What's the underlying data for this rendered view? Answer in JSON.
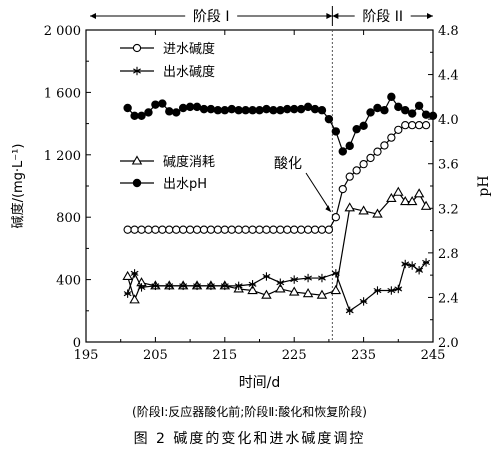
{
  "figure": {
    "note": "(阶段Ⅰ:反应器酸化前;阶段Ⅱ:酸化和恢复阶段)",
    "caption": "图 2   碱度的变化和进水碱度调控"
  },
  "chart_data": {
    "type": "line",
    "xlabel": "时间/d",
    "ylabel_left": "碱度/(mg·L⁻¹)",
    "ylabel_right": "pH",
    "xlim": [
      195,
      245
    ],
    "ylim_left": [
      0,
      2000
    ],
    "ylim_right": [
      2.0,
      4.8
    ],
    "xticks": [
      195,
      205,
      215,
      225,
      235,
      245
    ],
    "yticks_left": [
      0,
      400,
      800,
      1200,
      1600,
      2000
    ],
    "yticks_left_labels": [
      "0",
      "400",
      "800",
      "1 200",
      "1 600",
      "2 000"
    ],
    "yticks_right": [
      2.0,
      2.4,
      2.8,
      3.2,
      3.6,
      4.0,
      4.4,
      4.8
    ],
    "yticks_right_labels": [
      "2.0",
      "2.4",
      "2.8",
      "3.2",
      "3.6",
      "4.0",
      "4.4",
      "4.8"
    ],
    "stages": [
      {
        "label": "阶段 I",
        "start": 195,
        "end": 230.5
      },
      {
        "label": "阶段 II",
        "start": 230.5,
        "end": 245
      }
    ],
    "annotation": {
      "text": "酸化",
      "x": 230.5,
      "y": 800
    },
    "grid": false,
    "legend_placement": "top-left and middle-left",
    "series": [
      {
        "name": "进水碱度",
        "marker": "open-circle",
        "axis": "left",
        "x": [
          201,
          202,
          203,
          204,
          205,
          206,
          207,
          208,
          209,
          210,
          211,
          212,
          213,
          214,
          215,
          216,
          217,
          218,
          219,
          220,
          221,
          222,
          223,
          224,
          225,
          226,
          227,
          228,
          229,
          230,
          231,
          232,
          233,
          234,
          235,
          236,
          237,
          238,
          239,
          240,
          241,
          242,
          243,
          244
        ],
        "values": [
          720,
          720,
          720,
          720,
          720,
          720,
          720,
          720,
          720,
          720,
          720,
          720,
          720,
          720,
          720,
          720,
          720,
          720,
          720,
          720,
          720,
          720,
          720,
          720,
          720,
          720,
          720,
          720,
          720,
          720,
          800,
          980,
          1060,
          1100,
          1140,
          1180,
          1220,
          1260,
          1310,
          1360,
          1390,
          1390,
          1390,
          1390
        ]
      },
      {
        "name": "出水碱度",
        "marker": "asterisk",
        "axis": "left",
        "x": [
          201,
          202,
          203,
          205,
          207,
          209,
          211,
          213,
          215,
          217,
          219,
          221,
          223,
          225,
          227,
          229,
          231,
          233,
          235,
          237,
          239,
          240,
          241,
          242,
          243,
          244
        ],
        "values": [
          310,
          440,
          350,
          360,
          360,
          360,
          360,
          360,
          360,
          360,
          370,
          420,
          380,
          400,
          410,
          410,
          440,
          200,
          260,
          330,
          330,
          340,
          500,
          490,
          460,
          510
        ]
      },
      {
        "name": "碱度消耗",
        "marker": "open-triangle",
        "axis": "left",
        "x": [
          201,
          202,
          203,
          205,
          207,
          209,
          211,
          213,
          215,
          217,
          219,
          221,
          223,
          225,
          227,
          229,
          231,
          233,
          235,
          237,
          239,
          240,
          241,
          242,
          243,
          244
        ],
        "values": [
          420,
          270,
          380,
          360,
          360,
          360,
          360,
          360,
          360,
          340,
          330,
          300,
          340,
          320,
          310,
          300,
          330,
          860,
          840,
          820,
          920,
          960,
          900,
          900,
          950,
          870
        ]
      },
      {
        "name": "出水pH",
        "marker": "filled-circle",
        "axis": "right",
        "x": [
          201,
          202,
          203,
          204,
          205,
          206,
          207,
          208,
          209,
          210,
          211,
          212,
          213,
          214,
          215,
          216,
          217,
          218,
          219,
          220,
          221,
          222,
          223,
          224,
          225,
          226,
          227,
          228,
          229,
          230,
          231,
          232,
          233,
          234,
          235,
          236,
          237,
          238,
          239,
          240,
          241,
          242,
          243,
          244,
          245
        ],
        "values": [
          4.1,
          4.03,
          4.03,
          4.06,
          4.13,
          4.14,
          4.07,
          4.06,
          4.1,
          4.11,
          4.11,
          4.09,
          4.09,
          4.08,
          4.08,
          4.09,
          4.08,
          4.08,
          4.08,
          4.08,
          4.09,
          4.08,
          4.08,
          4.09,
          4.09,
          4.09,
          4.11,
          4.09,
          4.08,
          4.0,
          3.89,
          3.71,
          3.76,
          3.91,
          3.94,
          4.06,
          4.1,
          4.08,
          4.2,
          4.11,
          4.08,
          4.05,
          4.12,
          4.04,
          4.03
        ]
      }
    ]
  }
}
